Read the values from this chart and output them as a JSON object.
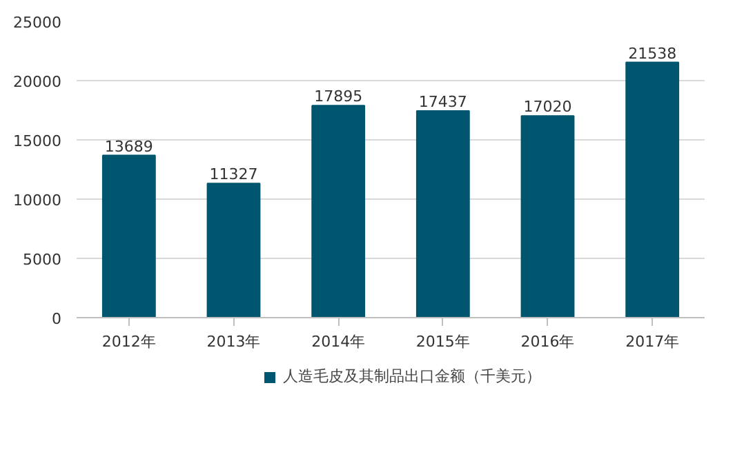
{
  "chart_data": {
    "type": "bar",
    "categories": [
      "2012年",
      "2013年",
      "2014年",
      "2015年",
      "2016年",
      "2017年"
    ],
    "series": [
      {
        "name": "人造毛皮及其制品出口金额（千美元）",
        "color": "#00566e",
        "values": [
          13689,
          11327,
          17895,
          17437,
          17020,
          21538
        ]
      }
    ],
    "ylim": [
      0,
      25000
    ],
    "yticks": [
      0,
      5000,
      10000,
      15000,
      20000,
      25000
    ],
    "grid": "y",
    "legend": "bottom",
    "data_labels": true
  }
}
